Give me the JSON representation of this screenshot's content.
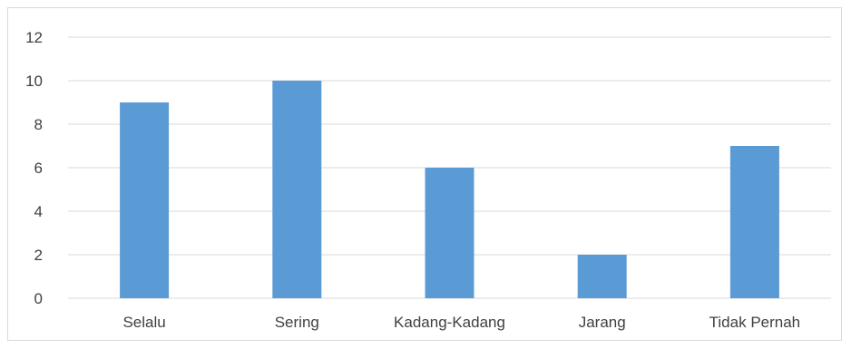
{
  "chart_data": {
    "type": "bar",
    "categories": [
      "Selalu",
      "Sering",
      "Kadang-Kadang",
      "Jarang",
      "Tidak Pernah"
    ],
    "values": [
      9,
      10,
      6,
      2,
      7
    ],
    "title": "",
    "xlabel": "",
    "ylabel": "",
    "ylim": [
      0,
      12
    ],
    "yticks": [
      0,
      2,
      4,
      6,
      8,
      10,
      12
    ],
    "grid": true,
    "legend": "none",
    "bar_color": "#5b9bd5",
    "grid_color": "#d9d9d9",
    "label_color": "#404040"
  }
}
